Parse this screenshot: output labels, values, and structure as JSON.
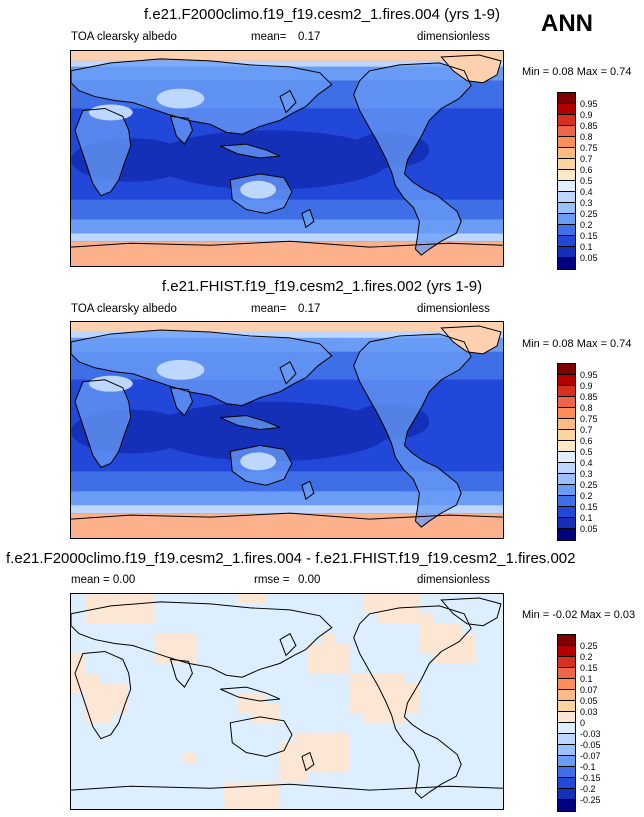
{
  "season": "ANN",
  "panels": [
    {
      "title": "f.e21.F2000climo.f19_f19.cesm2_1.fires.004 (yrs 1-9)",
      "left_label": "TOA clearsky albedo",
      "mean_label": "mean=",
      "mean_value": "0.17",
      "units": "dimensionless",
      "minmax": "Min =   0.08 Max =   0.74",
      "scheme": "abs",
      "colorbar": {
        "ticks": [
          "0.95",
          "0.9",
          "0.85",
          "0.8",
          "0.75",
          "0.7",
          "0.6",
          "0.5",
          "0.4",
          "0.3",
          "0.25",
          "0.2",
          "0.15",
          "0.1",
          "0.05"
        ],
        "colors": [
          "#7f0000",
          "#b30000",
          "#d7301f",
          "#ef6548",
          "#fc8d59",
          "#fdbb84",
          "#fdd49e",
          "#fee8c8",
          "#dfefff",
          "#bdd7ff",
          "#9ac0ff",
          "#6a9cf5",
          "#3f6fe6",
          "#2148d8",
          "#1530b8",
          "#000080"
        ]
      }
    },
    {
      "title": "f.e21.FHIST.f19_f19.cesm2_1.fires.002 (yrs 1-9)",
      "left_label": "TOA clearsky albedo",
      "mean_label": "mean=",
      "mean_value": "0.17",
      "units": "dimensionless",
      "minmax": "Min =   0.08 Max =   0.74",
      "scheme": "abs",
      "colorbar": {
        "ticks": [
          "0.95",
          "0.9",
          "0.85",
          "0.8",
          "0.75",
          "0.7",
          "0.6",
          "0.5",
          "0.4",
          "0.3",
          "0.25",
          "0.2",
          "0.15",
          "0.1",
          "0.05"
        ],
        "colors": [
          "#7f0000",
          "#b30000",
          "#d7301f",
          "#ef6548",
          "#fc8d59",
          "#fdbb84",
          "#fdd49e",
          "#fee8c8",
          "#dfefff",
          "#bdd7ff",
          "#9ac0ff",
          "#6a9cf5",
          "#3f6fe6",
          "#2148d8",
          "#1530b8",
          "#000080"
        ]
      }
    },
    {
      "title": "f.e21.F2000climo.f19_f19.cesm2_1.fires.004 - f.e21.FHIST.f19_f19.cesm2_1.fires.002",
      "left_label": "mean =   0.00",
      "mean_label": "rmse =",
      "mean_value": "0.00",
      "units": "dimensionless",
      "minmax": "Min = -0.02 Max =   0.03",
      "scheme": "diff",
      "colorbar": {
        "ticks": [
          "0.25",
          "0.2",
          "0.15",
          "0.1",
          "0.07",
          "0.05",
          "0.03",
          "0",
          "-0.03",
          "-0.05",
          "-0.07",
          "-0.1",
          "-0.15",
          "-0.2",
          "-0.25"
        ],
        "colors": [
          "#7f0000",
          "#b30000",
          "#d7301f",
          "#ef6548",
          "#fc8d59",
          "#fdbb84",
          "#fdd49e",
          "#fde7d4",
          "#ddeeff",
          "#bdd7ff",
          "#9ac0ff",
          "#6a9cf5",
          "#3f6fe6",
          "#2148d8",
          "#1530b8",
          "#000080"
        ]
      }
    }
  ]
}
